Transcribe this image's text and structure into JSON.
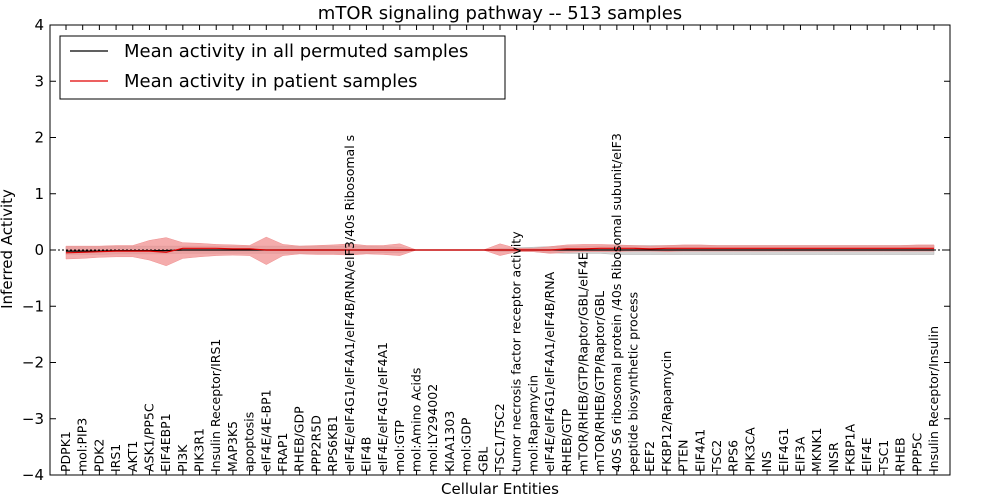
{
  "chart_data": {
    "type": "line",
    "title": "mTOR signaling pathway -- 513 samples",
    "xlabel": "Cellular Entities",
    "ylabel": "Inferred Activity",
    "ylim": [
      -4,
      4
    ],
    "yticks": [
      -4,
      -3,
      -2,
      -1,
      0,
      1,
      2,
      3,
      4
    ],
    "ytick_labels": [
      "−4",
      "−3",
      "−2",
      "−1",
      "0",
      "1",
      "2",
      "3",
      "4"
    ],
    "grid": false,
    "legend_position": "top-left",
    "categories": [
      "PDPK1",
      "mol:PIP3",
      "PDK2",
      "IRS1",
      "AKT1",
      "ASK1/PP5C",
      "EIF4EBP1",
      "PI3K",
      "PIK3R1",
      "Insulin Receptor/IRS1",
      "MAP3K5",
      "apoptosis",
      "eIF4E/4E-BP1",
      "FRAP1",
      "RHEB/GDP",
      "PPP2R5D",
      "RPS6KB1",
      "eIF4E/eIF4G1/eIF4A1/eIF4B/RNA/eIF3/40s Ribosomal s",
      "EIF4B",
      "eIF4E/eIF4G1/eIF4A1",
      "mol:GTP",
      "mol:Amino Acids",
      "mol:LY294002",
      "KIAA1303",
      "mol:GDP",
      "GBL",
      "TSC1/TSC2",
      "tumor necrosis factor receptor activity",
      "mol:Rapamycin",
      "eIF4E/eIF4G1/eIF4A1/eIF4B/RNA",
      "RHEB/GTP",
      "mTOR/RHEB/GTP/Raptor/GBL/eIF4E",
      "mTOR/RHEB/GTP/Raptor/GBL",
      "40S S6 ribosomal protein /40s Ribosomal subunit/eIF3",
      "peptide biosynthetic process",
      "EEF2",
      "FKBP12/Rapamycin",
      "PTEN",
      "EIF4A1",
      "TSC2",
      "RPS6",
      "PIK3CA",
      "INS",
      "EIF4G1",
      "EIF3A",
      "MKNK1",
      "INSR",
      "FKBP1A",
      "EIF4E",
      "TSC1",
      "RHEB",
      "PPP5C",
      "Insulin Receptor/Insulin"
    ],
    "series": [
      {
        "name": "Mean activity in all permuted samples",
        "color": "#000000",
        "band_color": "#b0b0b0",
        "values": [
          -0.02,
          -0.02,
          -0.02,
          -0.01,
          -0.01,
          -0.01,
          -0.01,
          0.0,
          0.0,
          0.0,
          0.0,
          0.0,
          0.0,
          0.0,
          0.0,
          0.0,
          0.0,
          0.0,
          0.0,
          0.0,
          0.0,
          0.0,
          0.0,
          0.0,
          0.0,
          0.0,
          0.0,
          0.0,
          0.0,
          0.0,
          0.0,
          0.0,
          0.0,
          0.0,
          0.0,
          0.0,
          0.0,
          0.0,
          0.0,
          0.0,
          0.0,
          0.0,
          0.0,
          0.0,
          0.0,
          0.0,
          0.0,
          0.0,
          0.0,
          0.0,
          0.0,
          0.0,
          0.0
        ],
        "lower": [
          -0.08,
          -0.08,
          -0.08,
          -0.07,
          -0.07,
          -0.07,
          -0.07,
          -0.06,
          -0.06,
          -0.06,
          -0.06,
          -0.06,
          -0.06,
          -0.06,
          -0.06,
          -0.06,
          -0.06,
          -0.06,
          -0.06,
          -0.05,
          -0.05,
          0.0,
          0.0,
          0.0,
          0.0,
          0.0,
          -0.03,
          -0.03,
          -0.03,
          -0.05,
          -0.06,
          -0.06,
          -0.06,
          -0.08,
          -0.08,
          -0.08,
          -0.08,
          -0.08,
          -0.08,
          -0.08,
          -0.08,
          -0.08,
          -0.08,
          -0.08,
          -0.08,
          -0.08,
          -0.08,
          -0.08,
          -0.08,
          -0.08,
          -0.08,
          -0.08,
          -0.08
        ],
        "upper": [
          0.06,
          0.06,
          0.06,
          0.07,
          0.07,
          0.07,
          0.07,
          0.07,
          0.07,
          0.07,
          0.07,
          0.07,
          0.07,
          0.07,
          0.07,
          0.07,
          0.07,
          0.07,
          0.07,
          0.06,
          0.05,
          0.0,
          0.0,
          0.0,
          0.0,
          0.0,
          0.03,
          0.04,
          0.05,
          0.06,
          0.07,
          0.07,
          0.07,
          0.08,
          0.08,
          0.08,
          0.08,
          0.08,
          0.08,
          0.08,
          0.08,
          0.08,
          0.08,
          0.08,
          0.08,
          0.08,
          0.08,
          0.08,
          0.08,
          0.08,
          0.08,
          0.08,
          0.08
        ]
      },
      {
        "name": "Mean activity in patient samples",
        "color": "#e00000",
        "band_color": "#f09090",
        "values": [
          -0.05,
          -0.04,
          -0.03,
          -0.02,
          -0.02,
          -0.02,
          -0.04,
          0.03,
          0.03,
          0.03,
          0.02,
          0.02,
          0.0,
          0.0,
          0.0,
          0.0,
          0.0,
          0.0,
          0.0,
          0.0,
          0.0,
          0.0,
          0.0,
          0.0,
          0.0,
          0.0,
          0.0,
          0.0,
          0.0,
          0.0,
          0.02,
          0.02,
          0.03,
          0.03,
          0.03,
          0.02,
          0.03,
          0.03,
          0.03,
          0.03,
          0.03,
          0.03,
          0.03,
          0.03,
          0.03,
          0.03,
          0.03,
          0.03,
          0.03,
          0.03,
          0.03,
          0.03,
          0.03
        ],
        "lower": [
          -0.16,
          -0.15,
          -0.13,
          -0.12,
          -0.12,
          -0.18,
          -0.28,
          -0.15,
          -0.12,
          -0.1,
          -0.09,
          -0.1,
          -0.26,
          -0.1,
          -0.07,
          -0.08,
          -0.08,
          -0.09,
          -0.07,
          -0.08,
          -0.1,
          0.0,
          0.0,
          0.0,
          0.0,
          0.0,
          -0.1,
          -0.03,
          -0.03,
          -0.06,
          -0.04,
          -0.03,
          -0.03,
          -0.03,
          -0.02,
          -0.02,
          -0.03,
          -0.02,
          -0.02,
          -0.02,
          -0.02,
          -0.02,
          -0.02,
          -0.02,
          -0.02,
          -0.02,
          -0.02,
          -0.02,
          -0.02,
          -0.02,
          -0.02,
          -0.02,
          -0.02
        ],
        "upper": [
          0.07,
          0.07,
          0.07,
          0.08,
          0.08,
          0.17,
          0.22,
          0.13,
          0.12,
          0.1,
          0.09,
          0.08,
          0.23,
          0.1,
          0.07,
          0.08,
          0.09,
          0.11,
          0.08,
          0.08,
          0.11,
          0.0,
          0.0,
          0.0,
          0.0,
          0.0,
          0.11,
          0.03,
          0.03,
          0.06,
          0.09,
          0.1,
          0.1,
          0.09,
          0.08,
          0.07,
          0.08,
          0.09,
          0.09,
          0.08,
          0.08,
          0.08,
          0.08,
          0.08,
          0.08,
          0.08,
          0.08,
          0.08,
          0.08,
          0.08,
          0.08,
          0.09,
          0.09
        ]
      }
    ]
  }
}
